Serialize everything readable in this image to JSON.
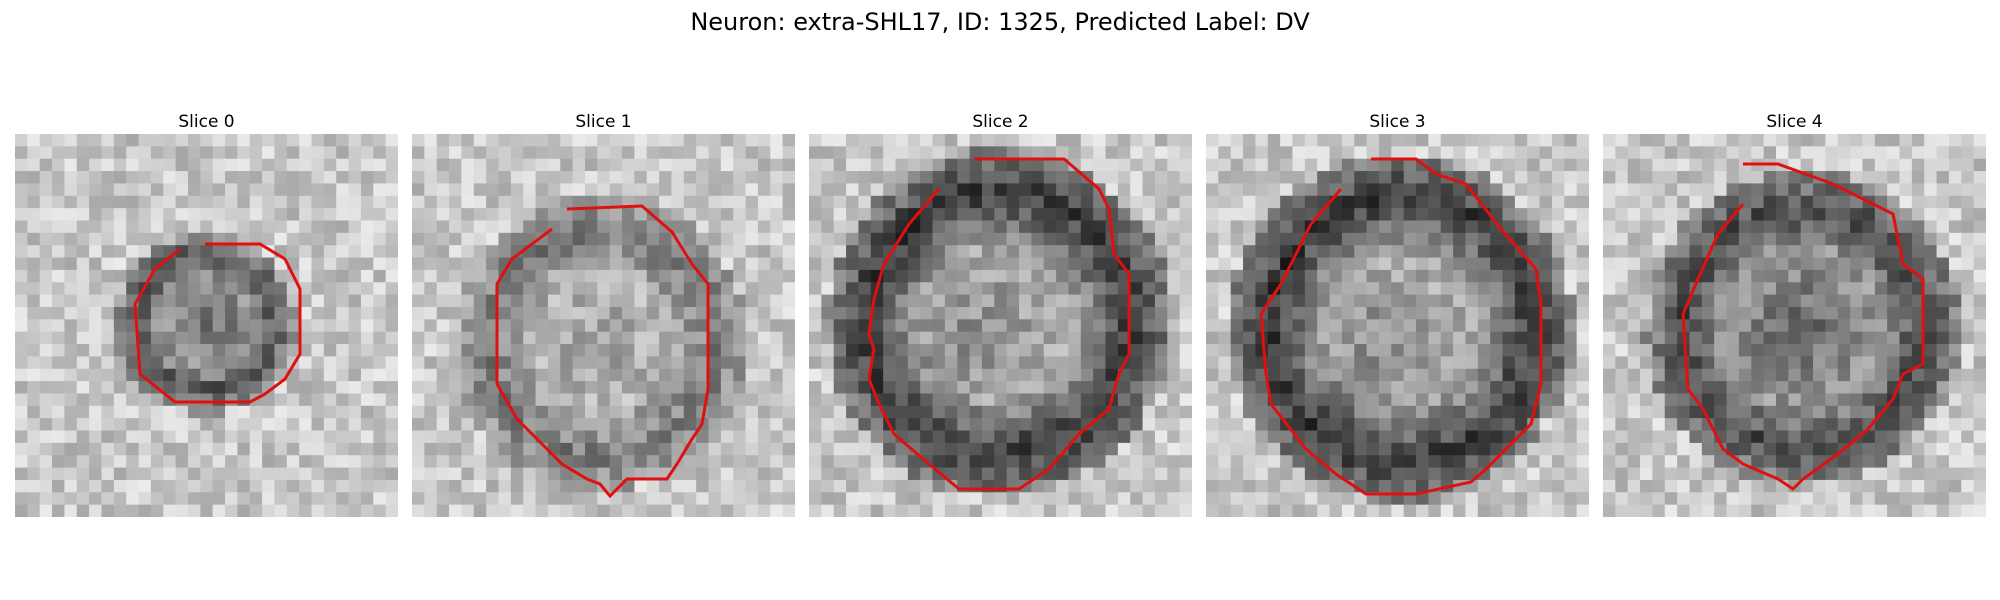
{
  "title": "Neuron: extra-SHL17, ID: 1325, Predicted Label: DV",
  "outline_color": "#e01010",
  "panels": [
    {
      "title": "Slice 0"
    },
    {
      "title": "Slice 1"
    },
    {
      "title": "Slice 2"
    },
    {
      "title": "Slice 3"
    },
    {
      "title": "Slice 4"
    }
  ]
}
